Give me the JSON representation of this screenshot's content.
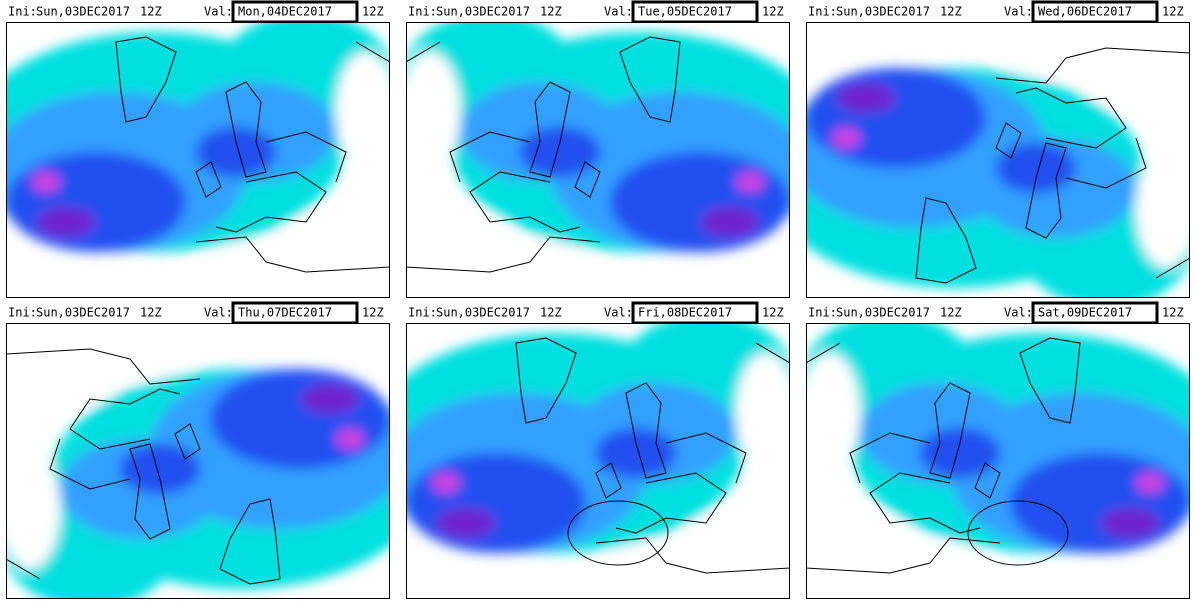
{
  "panels": [
    {
      "ini_label": "Ini:",
      "ini": "Sun,03DEC2017",
      "ini_hour": "12Z",
      "val_label": "Val:",
      "val": "Mon,04DEC2017",
      "val_hour": "12Z"
    },
    {
      "ini_label": "Ini:",
      "ini": "Sun,03DEC2017",
      "ini_hour": "12Z",
      "val_label": "Val:",
      "val": "Tue,05DEC2017",
      "val_hour": "12Z"
    },
    {
      "ini_label": "Ini:",
      "ini": "Sun,03DEC2017",
      "ini_hour": "12Z",
      "val_label": "Val:",
      "val": "Wed,06DEC2017",
      "val_hour": "12Z"
    },
    {
      "ini_label": "Ini:",
      "ini": "Sun,03DEC2017",
      "ini_hour": "12Z",
      "val_label": "Val:",
      "val": "Thu,07DEC2017",
      "val_hour": "12Z"
    },
    {
      "ini_label": "Ini:",
      "ini": "Sun,03DEC2017",
      "ini_hour": "12Z",
      "val_label": "Val:",
      "val": "Fri,08DEC2017",
      "val_hour": "12Z"
    },
    {
      "ini_label": "Ini:",
      "ini": "Sun,03DEC2017",
      "ini_hour": "12Z",
      "val_label": "Val:",
      "val": "Sat,09DEC2017",
      "val_hour": "12Z"
    }
  ]
}
